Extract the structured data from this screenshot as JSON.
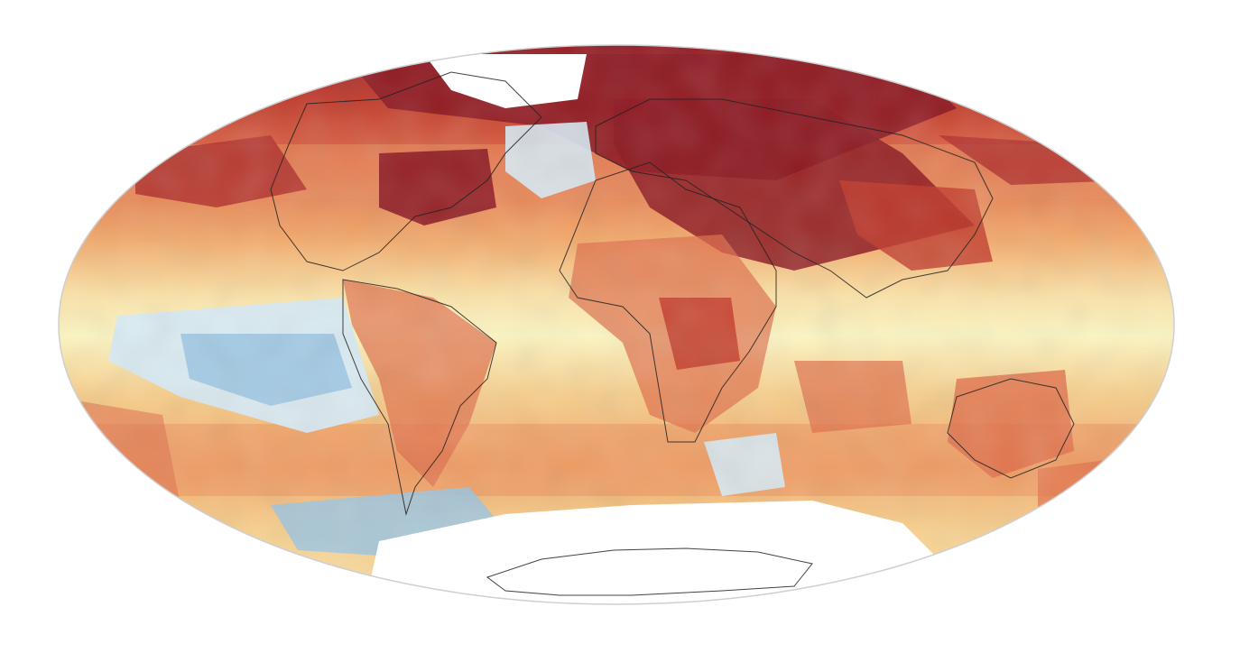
{
  "map": {
    "projection": "mollweide",
    "palette": {
      "cold": "#9cc6e2",
      "cool": "#d7eaf4",
      "neutral": "#fcf5c2",
      "warm_light": "#f7cf8d",
      "warm": "#f2a96a",
      "hot": "#e06e4a",
      "very_hot": "#c0392b",
      "extreme": "#8c1721",
      "no_data": "#ffffff",
      "outline": "#cfcfcf",
      "coastline": "#222222"
    },
    "regions": [
      {
        "name": "north-atlantic-cool-anomaly",
        "level": "cool"
      },
      {
        "name": "east-pacific-cool-anomaly",
        "level": "cold"
      },
      {
        "name": "southern-ocean-cool-anomaly",
        "level": "cold"
      },
      {
        "name": "south-atlantic-cool-anomaly",
        "level": "cool"
      },
      {
        "name": "eurasia-warm-anomaly",
        "level": "extreme"
      },
      {
        "name": "canada-warm-anomaly",
        "level": "extreme"
      },
      {
        "name": "arctic-warm-anomaly",
        "level": "extreme"
      },
      {
        "name": "central-africa-warm-anomaly",
        "level": "very_hot"
      },
      {
        "name": "australia-warm-anomaly",
        "level": "hot"
      },
      {
        "name": "antarctica",
        "level": "no_data"
      }
    ]
  }
}
